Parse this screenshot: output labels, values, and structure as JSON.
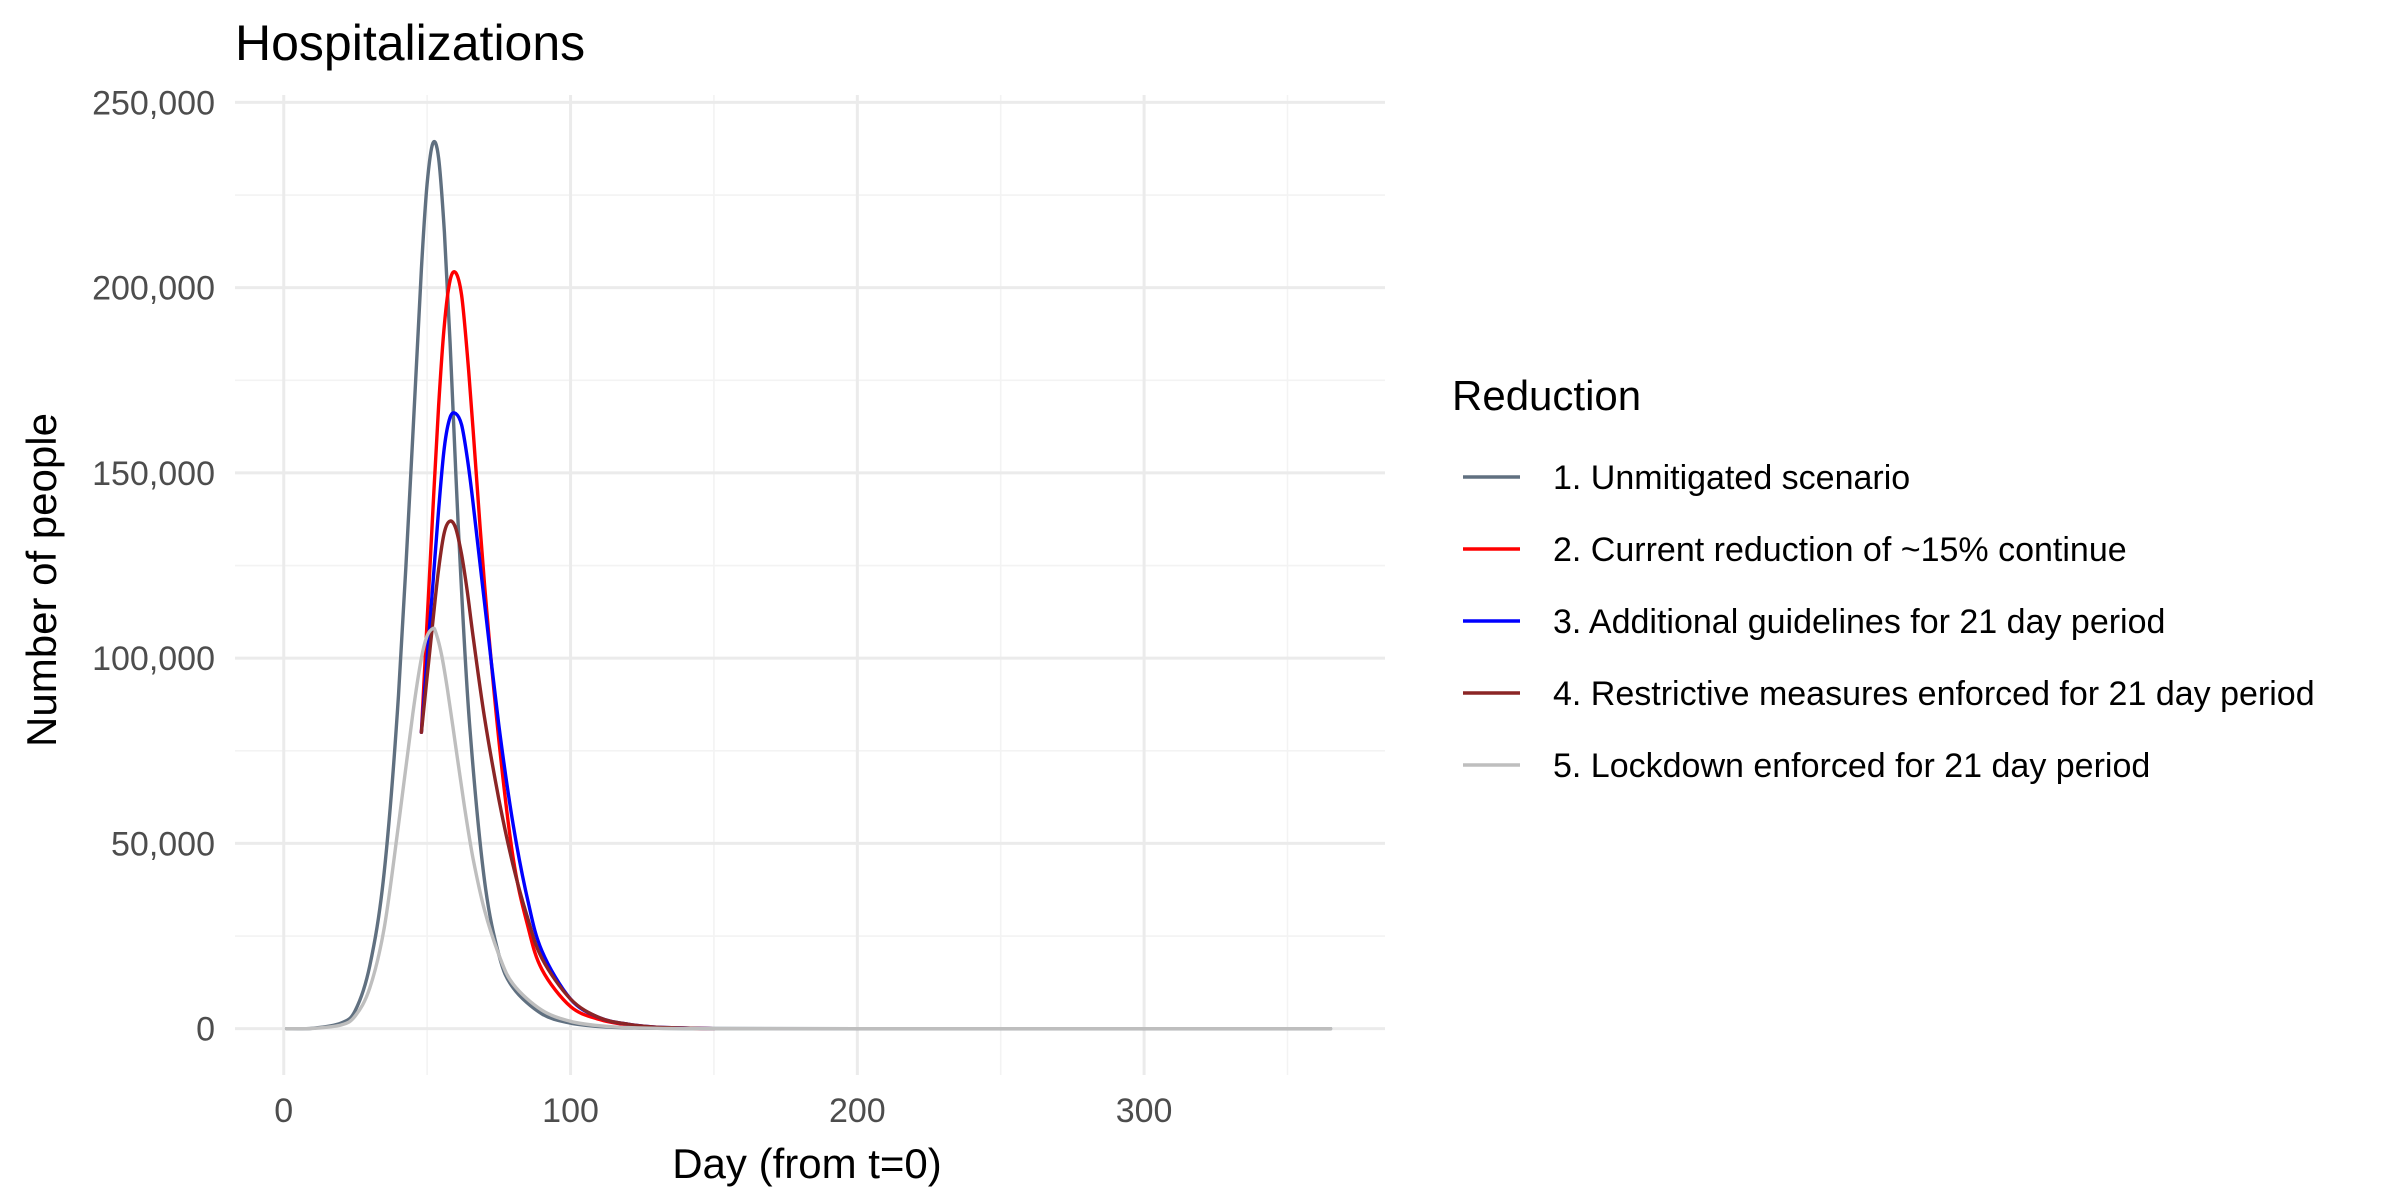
{
  "chart_data": {
    "type": "line",
    "title": "Hospitalizations",
    "xlabel": "Day (from t=0)",
    "ylabel": "Number of people",
    "xlim": [
      -17,
      384
    ],
    "ylim": [
      -12500,
      252000
    ],
    "x_ticks": [
      0,
      100,
      200,
      300
    ],
    "x_tick_labels": [
      "0",
      "100",
      "200",
      "300"
    ],
    "y_ticks": [
      0,
      50000,
      100000,
      150000,
      200000,
      250000
    ],
    "y_tick_labels": [
      "0",
      "50,000",
      "100,000",
      "150,000",
      "200,000",
      "250,000"
    ],
    "grid": true,
    "legend": {
      "title": "Reduction",
      "position": "right"
    },
    "series": [
      {
        "name": "1. Unmitigated scenario",
        "color": "#607080",
        "x": [
          1,
          10,
          20,
          25,
          30,
          35,
          40,
          45,
          48,
          50,
          52,
          54,
          56,
          58,
          60,
          62,
          65,
          70,
          75,
          80,
          90,
          100,
          110,
          120,
          140,
          200,
          300,
          365
        ],
        "y": [
          0,
          100,
          1500,
          5000,
          17000,
          42000,
          90000,
          160000,
          205000,
          228000,
          239000,
          235000,
          215000,
          185000,
          150000,
          118000,
          80000,
          40000,
          20000,
          11000,
          4000,
          1500,
          600,
          250,
          50,
          0,
          0,
          0
        ]
      },
      {
        "name": "2. Current reduction of ~15% continue",
        "color": "#ff0000",
        "x": [
          48,
          50,
          52,
          54,
          56,
          58,
          60,
          62,
          64,
          66,
          70,
          75,
          80,
          85,
          90,
          100,
          110,
          120,
          130,
          150
        ],
        "y": [
          80000,
          110000,
          140000,
          168000,
          190000,
          202000,
          204000,
          198000,
          182000,
          162000,
          120000,
          78000,
          46000,
          28000,
          16000,
          6000,
          2500,
          1000,
          300,
          0
        ]
      },
      {
        "name": "3. Additional guidelines for 21 day period",
        "color": "#0000ff",
        "x": [
          48,
          50,
          52,
          54,
          56,
          58,
          60,
          62,
          64,
          66,
          70,
          75,
          80,
          85,
          90,
          100,
          110,
          120,
          130,
          150
        ],
        "y": [
          80000,
          100000,
          120000,
          140000,
          157000,
          165000,
          166000,
          163000,
          154000,
          142000,
          115000,
          82000,
          55000,
          35000,
          21000,
          8000,
          3000,
          1200,
          400,
          0
        ]
      },
      {
        "name": "4. Restrictive measures enforced for 21 day period",
        "color": "#8b2525",
        "x": [
          48,
          50,
          52,
          54,
          56,
          58,
          60,
          62,
          64,
          66,
          70,
          75,
          80,
          85,
          90,
          100,
          110,
          120,
          130,
          150
        ],
        "y": [
          80000,
          95000,
          110000,
          124000,
          134000,
          137000,
          135000,
          128000,
          118000,
          106000,
          84000,
          62000,
          44000,
          30000,
          19000,
          8000,
          3000,
          1200,
          400,
          0
        ]
      },
      {
        "name": "5. Lockdown enforced for 21 day period",
        "color": "#bebebe",
        "x": [
          1,
          10,
          20,
          25,
          30,
          35,
          40,
          45,
          48,
          50,
          52,
          53,
          55,
          57,
          60,
          63,
          66,
          70,
          75,
          80,
          90,
          100,
          110,
          120,
          130,
          150,
          200,
          300,
          365
        ],
        "y": [
          0,
          80,
          1000,
          3500,
          11000,
          27000,
          55000,
          85000,
          100000,
          106000,
          108000,
          107000,
          101000,
          92000,
          76000,
          60000,
          46000,
          32000,
          20000,
          12000,
          5000,
          2000,
          800,
          300,
          100,
          0,
          0,
          0,
          0
        ]
      }
    ]
  }
}
